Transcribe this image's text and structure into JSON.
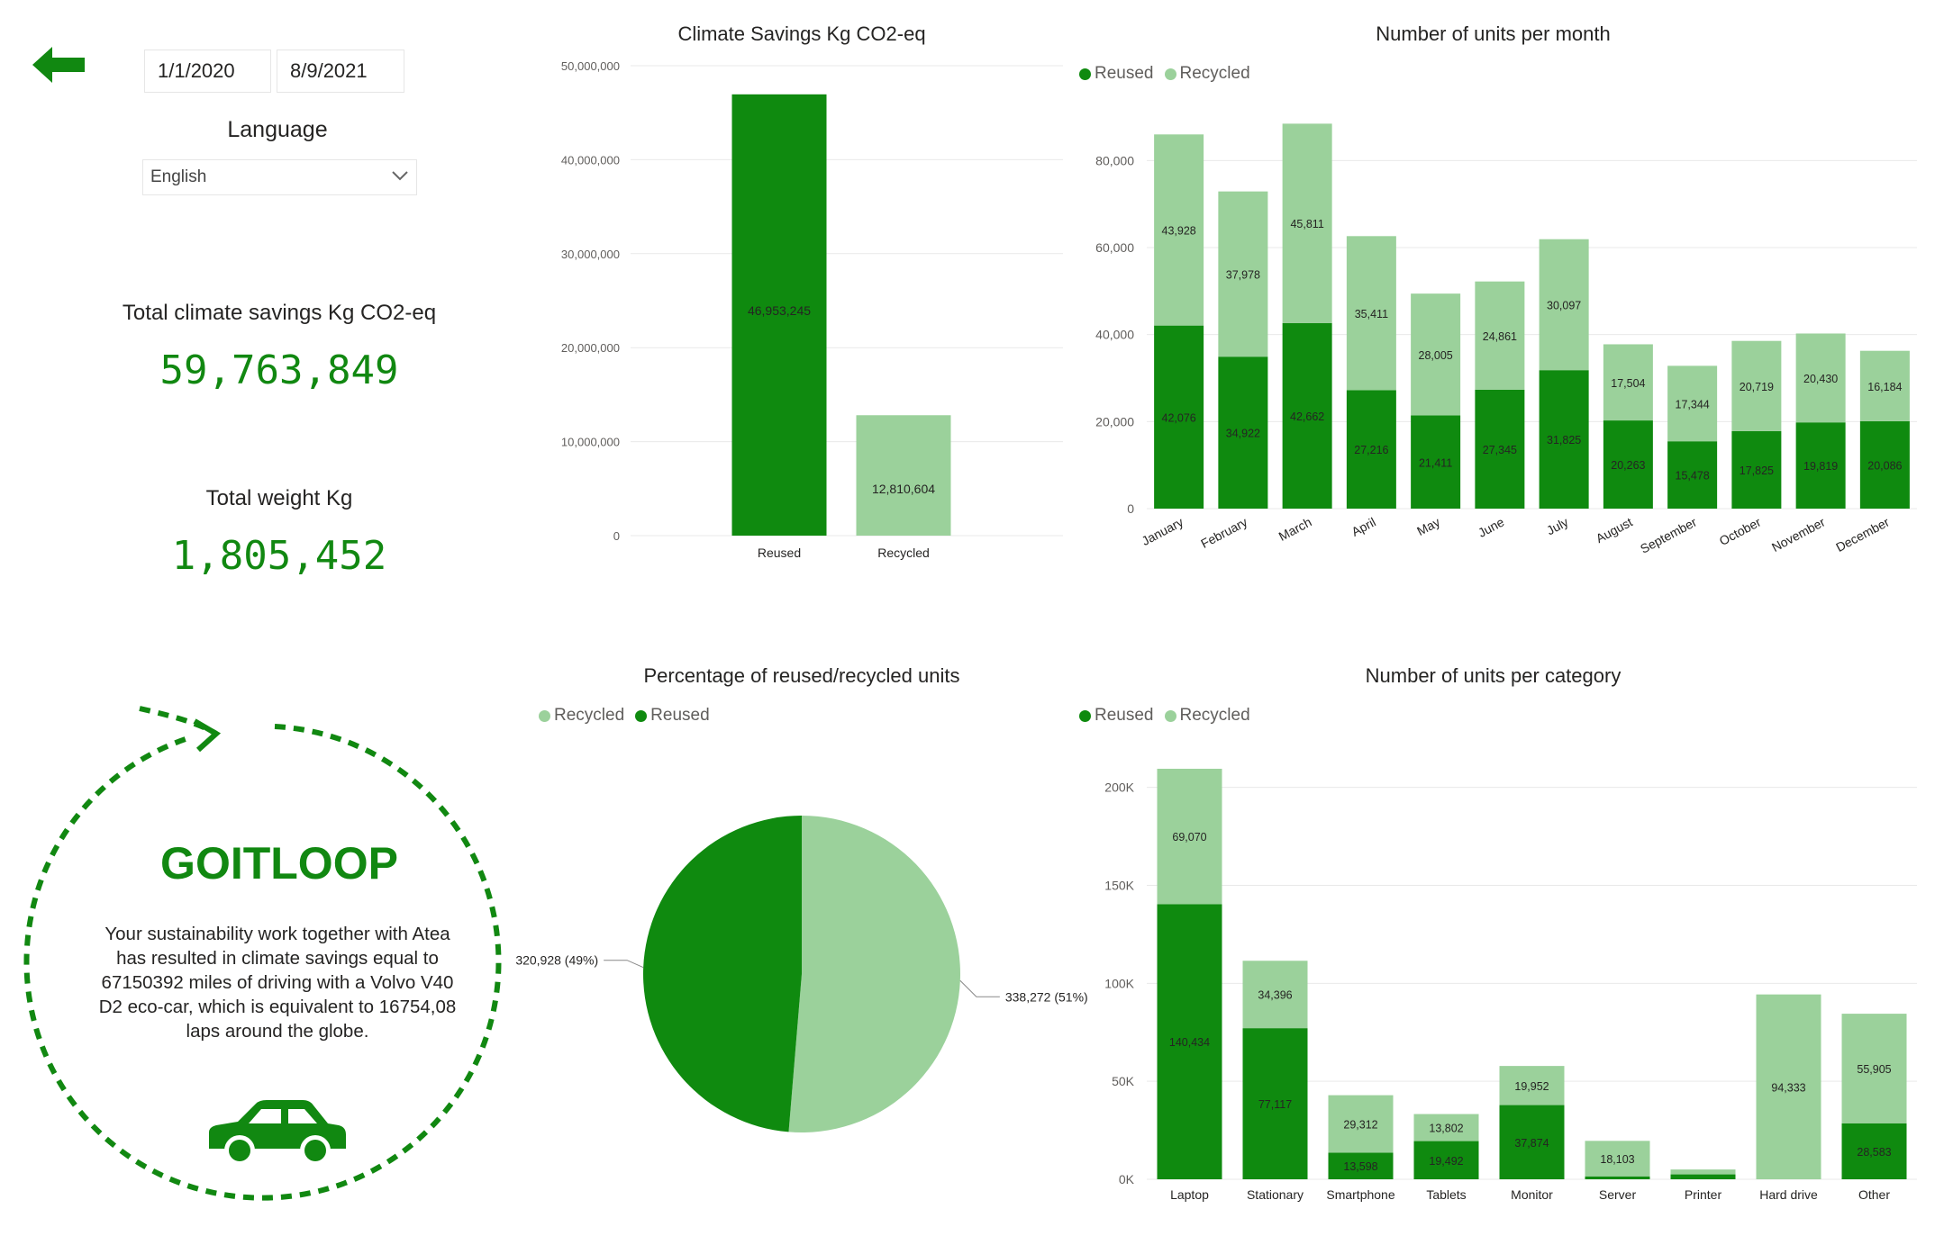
{
  "colors": {
    "reused": "#0f8a0f",
    "recycled": "#9bd19b",
    "accent": "#118811",
    "grid": "#e9e9e9",
    "axis_text": "#605e5c"
  },
  "filters": {
    "start_date": "1/1/2020",
    "end_date": "8/9/2021",
    "language_label": "Language",
    "language_value": "English"
  },
  "kpis": {
    "climate_label": "Total climate savings Kg CO2-eq",
    "climate_value": "59,763,849",
    "weight_label": "Total weight Kg",
    "weight_value": "1,805,452"
  },
  "loop": {
    "title": "GOITLOOP",
    "text": "Your sustainability work together with Atea has resulted in climate savings equal to 67150392 miles of driving with a Volvo V40 D2 eco-car, which is equivalent to 16754,08 laps around the globe.",
    "icon": "car-icon"
  },
  "legend": {
    "reused": "Reused",
    "recycled": "Recycled"
  },
  "chart_data": [
    {
      "id": "climate",
      "type": "bar",
      "title": "Climate Savings Kg CO2-eq",
      "categories": [
        "Reused",
        "Recycled"
      ],
      "values": [
        46953245,
        12810604
      ],
      "value_labels": [
        "46,953,245",
        "12,810,604"
      ],
      "ylim": [
        0,
        50000000
      ],
      "yticks": [
        0,
        10000000,
        20000000,
        30000000,
        40000000,
        50000000
      ],
      "ytick_labels": [
        "0",
        "10,000,000",
        "20,000,000",
        "30,000,000",
        "40,000,000",
        "50,000,000"
      ],
      "grid": true
    },
    {
      "id": "monthly",
      "type": "bar",
      "stacked": true,
      "title": "Number of units per month",
      "legend_position": "top-left",
      "categories": [
        "January",
        "February",
        "March",
        "April",
        "May",
        "June",
        "July",
        "August",
        "September",
        "October",
        "November",
        "December"
      ],
      "series": [
        {
          "name": "Reused",
          "values": [
            42076,
            34922,
            42662,
            27216,
            21411,
            27345,
            31825,
            20263,
            15478,
            17825,
            19819,
            20086
          ],
          "labels": [
            "42,076",
            "34,922",
            "42,662",
            "27,216",
            "21,411",
            "27,345",
            "31,825",
            "20,263",
            "15,478",
            "17,825",
            "19,819",
            "20,086"
          ]
        },
        {
          "name": "Recycled",
          "values": [
            43928,
            37978,
            45811,
            35411,
            28005,
            24861,
            30097,
            17504,
            17344,
            20719,
            20430,
            16184
          ],
          "labels": [
            "43,928",
            "37,978",
            "45,811",
            "35,411",
            "28,005",
            "24,861",
            "30,097",
            "17,504",
            "17,344",
            "20,719",
            "20,430",
            "16,184"
          ]
        }
      ],
      "ylim": [
        0,
        90000
      ],
      "yticks": [
        0,
        20000,
        40000,
        60000,
        80000
      ],
      "ytick_labels": [
        "0",
        "20,000",
        "40,000",
        "60,000",
        "80,000"
      ],
      "grid": true
    },
    {
      "id": "pie",
      "type": "pie",
      "title": "Percentage of reused/recycled units",
      "legend_position": "top-left",
      "legend_order": [
        "Recycled",
        "Reused"
      ],
      "slices": [
        {
          "name": "Recycled",
          "value": 338272,
          "label": "338,272 (51%)"
        },
        {
          "name": "Reused",
          "value": 320928,
          "label": "320,928 (49%)"
        }
      ]
    },
    {
      "id": "category",
      "type": "bar",
      "stacked": true,
      "title": "Number of units per category",
      "legend_position": "top-left",
      "categories": [
        "Laptop",
        "Stationary",
        "Smartphone",
        "Tablets",
        "Monitor",
        "Server",
        "Printer",
        "Hard drive",
        "Other"
      ],
      "series": [
        {
          "name": "Reused",
          "values": [
            140434,
            77117,
            13598,
            19492,
            37874,
            1500,
            2500,
            0,
            28583
          ],
          "labels": [
            "140,434",
            "77,117",
            "13,598",
            "19,492",
            "37,874",
            "",
            "",
            "",
            "28,583"
          ]
        },
        {
          "name": "Recycled",
          "values": [
            69070,
            34396,
            29312,
            13802,
            19952,
            18103,
            2500,
            94333,
            55905
          ],
          "labels": [
            "69,070",
            "34,396",
            "29,312",
            "13,802",
            "19,952",
            "18,103",
            "",
            "94,333",
            "55,905"
          ]
        }
      ],
      "ylim": [
        0,
        215000
      ],
      "yticks": [
        0,
        50000,
        100000,
        150000,
        200000
      ],
      "ytick_labels": [
        "0K",
        "50K",
        "100K",
        "150K",
        "200K"
      ],
      "grid": true
    }
  ]
}
